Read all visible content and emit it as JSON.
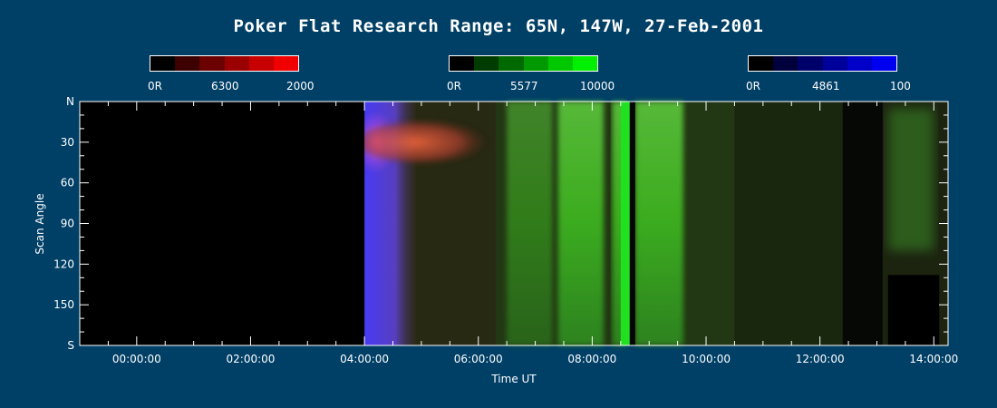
{
  "chart_data": {
    "type": "heatmap",
    "title": "Poker Flat Research Range: 65N, 147W, 27-Feb-2001",
    "xlabel": "Time UT",
    "ylabel": "Scan Angle",
    "x_ticks": [
      "00:00:00",
      "02:00:00",
      "04:00:00",
      "06:00:00",
      "08:00:00",
      "10:00:00",
      "12:00:00",
      "14:00:00"
    ],
    "x_tick_hours": [
      0,
      2,
      4,
      6,
      8,
      10,
      12,
      14
    ],
    "xlim_hours": [
      -1.0,
      14.25
    ],
    "y_ticks": [
      "N",
      "30",
      "60",
      "90",
      "120",
      "150",
      "S"
    ],
    "y_tick_values": [
      0,
      30,
      60,
      90,
      120,
      150,
      180
    ],
    "ylim": [
      0,
      180
    ],
    "colorbars": [
      {
        "min_label": "0R",
        "wavelength": "6300",
        "max_label": "2000",
        "colors": [
          "#000000",
          "#3c0000",
          "#6a0000",
          "#9a0000",
          "#c80000",
          "#f00000"
        ]
      },
      {
        "min_label": "0R",
        "wavelength": "5577",
        "max_label": "10000",
        "colors": [
          "#000000",
          "#003c00",
          "#006a00",
          "#009a00",
          "#00c800",
          "#00f000"
        ]
      },
      {
        "min_label": "0R",
        "wavelength": "4861",
        "max_label": "100",
        "colors": [
          "#000000",
          "#00003c",
          "#00006a",
          "#00009a",
          "#0000c8",
          "#0000f0"
        ]
      }
    ],
    "features": [
      {
        "name": "no-data",
        "start_h": -1.0,
        "end_h": 4.0,
        "intensity": "none"
      },
      {
        "name": "blue-onset",
        "start_h": 4.0,
        "end_h": 4.5,
        "intensity": "strong-4861"
      },
      {
        "name": "red-arc",
        "start_h": 4.0,
        "end_h": 5.7,
        "scan_range": [
          15,
          50
        ],
        "intensity": "strong-6300"
      },
      {
        "name": "green-band-1",
        "start_h": 6.5,
        "end_h": 7.3,
        "intensity": "moderate-5577"
      },
      {
        "name": "green-band-2",
        "start_h": 7.4,
        "end_h": 8.2,
        "intensity": "strong-5577"
      },
      {
        "name": "green-band-3",
        "start_h": 8.35,
        "end_h": 8.6,
        "intensity": "strong-5577"
      },
      {
        "name": "green-band-4",
        "start_h": 8.75,
        "end_h": 9.6,
        "intensity": "strong-5577"
      },
      {
        "name": "green-band-5",
        "start_h": 13.2,
        "end_h": 14.0,
        "scan_range": [
          5,
          110
        ],
        "intensity": "moderate-5577"
      },
      {
        "name": "no-data-late",
        "start_h": 13.1,
        "end_h": 14.0,
        "scan_range": [
          128,
          180
        ],
        "intensity": "none"
      }
    ]
  }
}
